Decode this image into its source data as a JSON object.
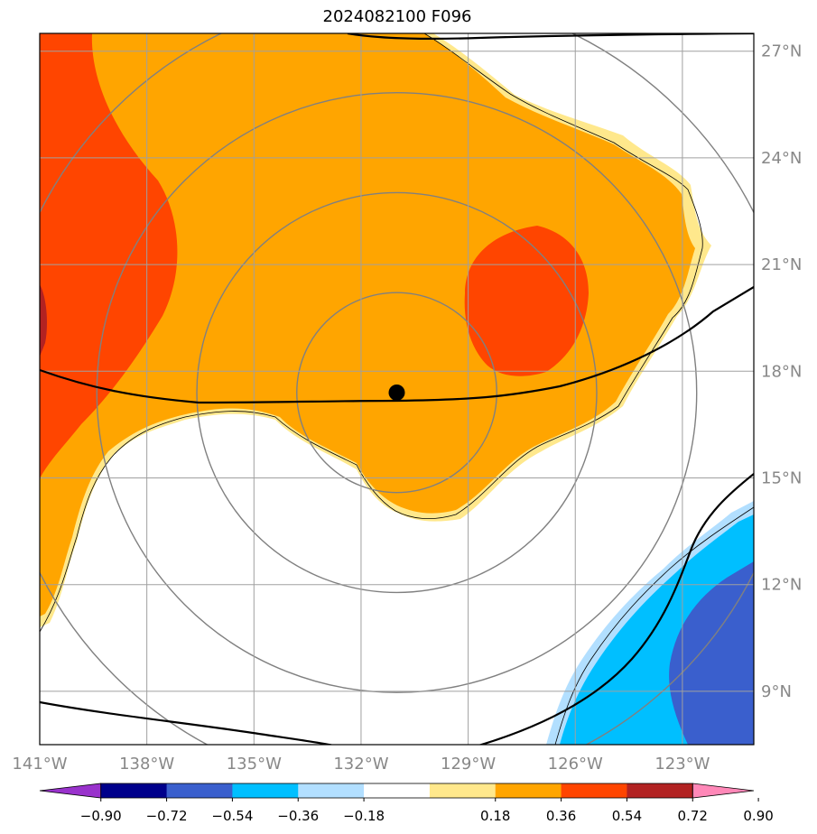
{
  "title": "2024082100 F096",
  "map": {
    "lon_range": [
      -141,
      -121
    ],
    "lat_range": [
      7.5,
      27.5
    ],
    "center_marker": {
      "lon": -131,
      "lat": 17.4
    },
    "range_rings_deg": [
      2.8,
      5.6,
      8.4,
      11.2
    ],
    "x_tick_labels": [
      "141°W",
      "138°W",
      "135°W",
      "132°W",
      "129°W",
      "126°W",
      "123°W"
    ],
    "y_tick_labels": [
      "27°N",
      "24°N",
      "21°N",
      "18°N",
      "15°N",
      "12°N",
      "9°N"
    ]
  },
  "colorbar": {
    "tick_labels": [
      "−0.90",
      "−0.72",
      "−0.54",
      "−0.36",
      "−0.18",
      "0.18",
      "0.36",
      "0.54",
      "0.72",
      "0.90"
    ],
    "colors": [
      "#9932cc",
      "#00008b",
      "#3a5fcd",
      "#00bfff",
      "#b2dfff",
      "#ffffff",
      "#ffe88c",
      "#ffa500",
      "#ff4500",
      "#b22222",
      "#ff88b8"
    ]
  }
}
